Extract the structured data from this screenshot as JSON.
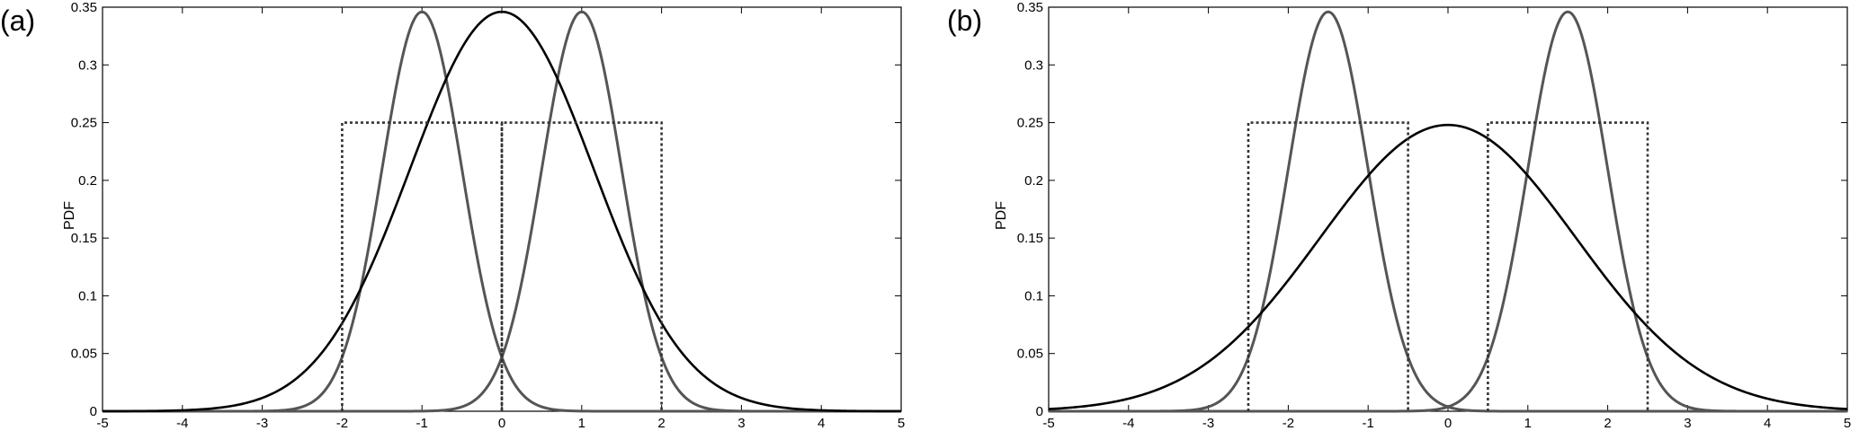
{
  "chart_data": [
    {
      "panel_label": "(a)",
      "type": "line",
      "xlabel": "",
      "ylabel": "PDF",
      "xlim": [
        -5,
        5
      ],
      "ylim": [
        0,
        0.35
      ],
      "grid": false,
      "x_ticks": [
        "-5",
        "-4",
        "-3",
        "-2",
        "-1",
        "0",
        "1",
        "2",
        "3",
        "4",
        "5"
      ],
      "y_ticks": [
        "0",
        "0.05",
        "0.1",
        "0.15",
        "0.2",
        "0.25",
        "0.3",
        "0.35"
      ],
      "series": [
        {
          "style": "gray-solid",
          "kind": "gaussian",
          "mean": -1,
          "sigma": 0.5,
          "amp": 0.346
        },
        {
          "style": "gray-solid",
          "kind": "gaussian",
          "mean": 1,
          "sigma": 0.5,
          "amp": 0.346
        },
        {
          "style": "black-solid",
          "kind": "gaussian",
          "mean": 0,
          "sigma": 1.15,
          "amp": 0.346
        },
        {
          "style": "dotted",
          "kind": "uniform",
          "from": -2,
          "to": 0,
          "height": 0.25
        },
        {
          "style": "dotted",
          "kind": "uniform",
          "from": 0,
          "to": 2,
          "height": 0.25
        }
      ]
    },
    {
      "panel_label": "(b)",
      "type": "line",
      "xlabel": "",
      "ylabel": "PDF",
      "xlim": [
        -5,
        5
      ],
      "ylim": [
        0,
        0.35
      ],
      "grid": false,
      "x_ticks": [
        "-5",
        "-4",
        "-3",
        "-2",
        "-1",
        "0",
        "1",
        "2",
        "3",
        "4",
        "5"
      ],
      "y_ticks": [
        "0",
        "0.05",
        "0.1",
        "0.15",
        "0.2",
        "0.25",
        "0.3",
        "0.35"
      ],
      "series": [
        {
          "style": "gray-solid",
          "kind": "gaussian",
          "mean": -1.5,
          "sigma": 0.5,
          "amp": 0.346
        },
        {
          "style": "gray-solid",
          "kind": "gaussian",
          "mean": 1.5,
          "sigma": 0.5,
          "amp": 0.346
        },
        {
          "style": "black-solid",
          "kind": "gaussian",
          "mean": 0,
          "sigma": 1.6,
          "amp": 0.248
        },
        {
          "style": "dotted",
          "kind": "uniform",
          "from": -2.5,
          "to": -0.5,
          "height": 0.25
        },
        {
          "style": "dotted",
          "kind": "uniform",
          "from": 0.5,
          "to": 2.5,
          "height": 0.25
        }
      ]
    }
  ],
  "colors": {
    "gray_curve": "#555555",
    "black_curve": "#000000",
    "dotted_line": "#333333",
    "axes": "#000000"
  }
}
